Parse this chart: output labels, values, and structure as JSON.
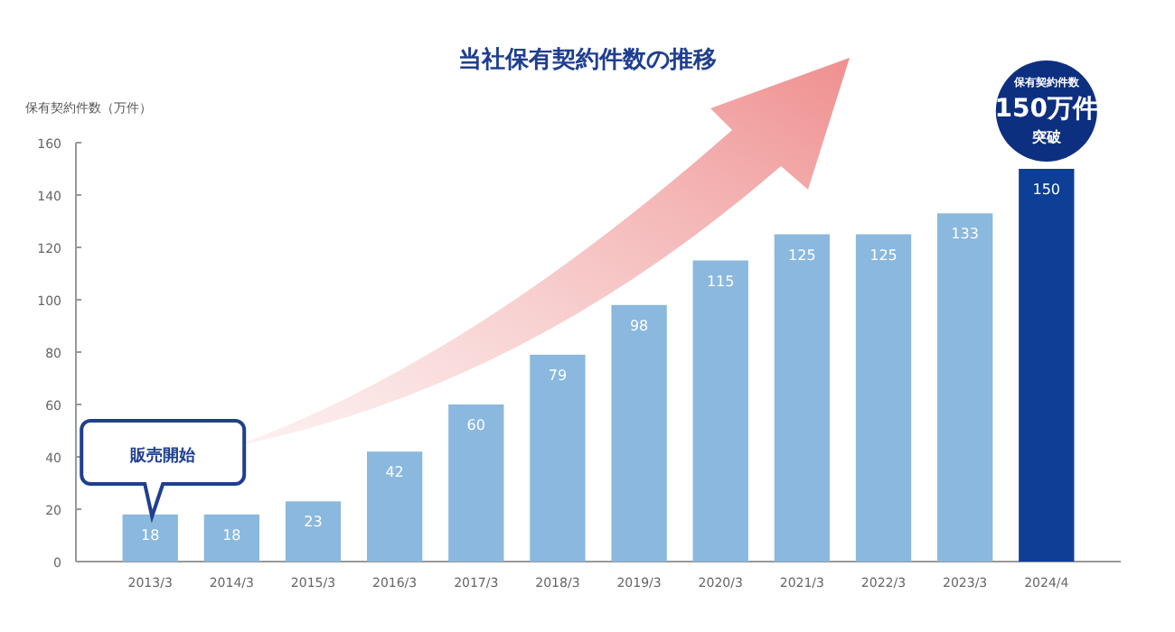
{
  "chart_data": {
    "type": "bar",
    "title": "当社保有契約件数の推移",
    "ylabel": "保有契約件数（万件）",
    "categories": [
      "2013/3",
      "2014/3",
      "2015/3",
      "2016/3",
      "2017/3",
      "2018/3",
      "2019/3",
      "2020/3",
      "2021/3",
      "2022/3",
      "2023/3",
      "2024/4"
    ],
    "values": [
      18,
      18,
      23,
      42,
      60,
      79,
      98,
      115,
      125,
      125,
      133,
      150
    ],
    "colors": [
      "#8ab8de",
      "#8ab8de",
      "#8ab8de",
      "#8ab8de",
      "#8ab8de",
      "#8ab8de",
      "#8ab8de",
      "#8ab8de",
      "#8ab8de",
      "#8ab8de",
      "#8ab8de",
      "#0d3f96"
    ],
    "ylim": [
      0,
      160
    ],
    "yticks": [
      0,
      20,
      40,
      60,
      80,
      100,
      120,
      140,
      160
    ],
    "data_labels": true,
    "annotations": [
      "販売開始",
      "保有契約件数",
      "150万件",
      "突破"
    ]
  }
}
